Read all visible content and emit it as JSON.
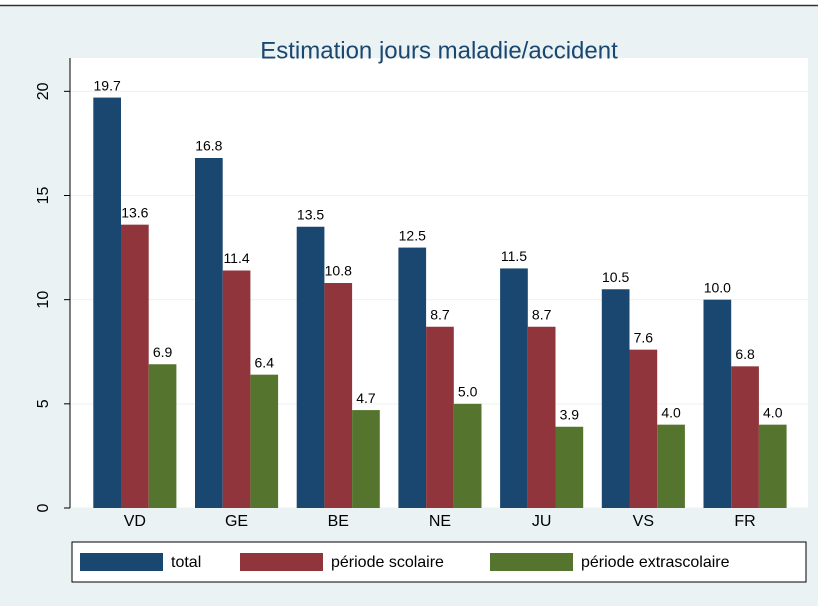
{
  "chart_data": {
    "type": "bar",
    "title": "Estimation jours maladie/accident",
    "categories": [
      "VD",
      "GE",
      "BE",
      "NE",
      "JU",
      "VS",
      "FR"
    ],
    "series": [
      {
        "name": "total",
        "color": "#1a476f",
        "values": [
          19.7,
          16.8,
          13.5,
          12.5,
          11.5,
          10.5,
          10.0
        ],
        "value_labels": [
          "19.7",
          "16.8",
          "13.5",
          "12.5",
          "11.5",
          "10.5",
          "10.0"
        ]
      },
      {
        "name": "période scolaire",
        "color": "#90353b",
        "values": [
          13.6,
          11.4,
          10.8,
          8.7,
          8.7,
          7.6,
          6.8
        ],
        "value_labels": [
          "13.6",
          "11.4",
          "10.8",
          "8.7",
          "8.7",
          "7.6",
          "6.8"
        ]
      },
      {
        "name": "période extrascolaire",
        "color": "#55752f",
        "values": [
          6.9,
          6.4,
          4.7,
          5.0,
          3.9,
          4.0,
          4.0
        ],
        "value_labels": [
          "6.9",
          "6.4",
          "4.7",
          "5.0",
          "3.9",
          "4.0",
          "4.0"
        ]
      }
    ],
    "ylim": [
      0,
      21.6
    ],
    "yticks": [
      0,
      5,
      10,
      15,
      20
    ],
    "grid": true,
    "legend": "bottom"
  }
}
